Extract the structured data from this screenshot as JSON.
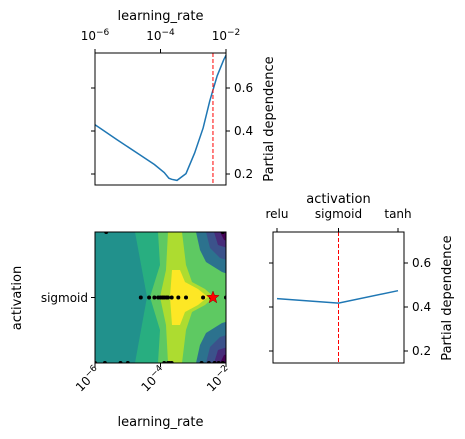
{
  "chart_data": [
    {
      "type": "line",
      "panel": "learning_rate",
      "xlabel": "learning_rate",
      "ylabel": "Partial dependence",
      "x_scale": "log",
      "xlim": [
        1e-06,
        0.01
      ],
      "x_ticks": [
        "10^-6",
        "10^-4",
        "10^-2"
      ],
      "ylim": [
        0.15,
        0.73
      ],
      "y_ticks": [
        "0.2",
        "0.4",
        "0.6"
      ],
      "x": [
        1e-06,
        4.6e-06,
        2.2e-05,
        6.5e-05,
        0.00013,
        0.00018,
        0.00022,
        0.00032,
        0.0006,
        0.0011,
        0.002,
        0.0032,
        0.0054,
        0.0085,
        0.01
      ],
      "y": [
        0.415,
        0.35,
        0.285,
        0.24,
        0.205,
        0.18,
        0.175,
        0.17,
        0.2,
        0.29,
        0.4,
        0.52,
        0.63,
        0.7,
        0.72
      ],
      "line_color": "#1f77b4",
      "marker_x": 0.004,
      "marker_color": "#ff0000"
    },
    {
      "type": "line",
      "panel": "activation",
      "xlabel": "activation",
      "ylabel": "Partial dependence",
      "categories": [
        "relu",
        "sigmoid",
        "tanh"
      ],
      "values": [
        0.435,
        0.415,
        0.47
      ],
      "ylim": [
        0.15,
        0.73
      ],
      "y_ticks": [
        "0.2",
        "0.4",
        "0.6"
      ],
      "line_color": "#1f77b4",
      "marker_category": "sigmoid",
      "marker_color": "#ff0000"
    },
    {
      "type": "heatmap",
      "panel": "learning_rate-activation",
      "xlabel": "learning_rate",
      "ylabel": "activation",
      "x_scale": "log",
      "xlim": [
        1e-06,
        0.01
      ],
      "x_ticks": [
        "10^-6",
        "10^-4",
        "10^-2"
      ],
      "y_ticks": [
        "sigmoid"
      ],
      "colormap": [
        "#440154",
        "#472c7a",
        "#3b528b",
        "#2c728e",
        "#21918c",
        "#28ae80",
        "#5ec962",
        "#addc30",
        "#fde725"
      ],
      "samples_sigmoid": [
        2.5e-05,
        4.5e-05,
        6.5e-05,
        8.5e-05,
        0.0001,
        0.000115,
        0.00013,
        0.00015,
        0.00017,
        0.00022,
        0.00035,
        0.0006,
        0.002,
        0.0035,
        0.01
      ],
      "samples_bottom": [
        1e-06,
        2e-06,
        6e-06,
        1e-05,
        0.00013,
        0.00017,
        0.00019,
        0.00022,
        0.0018,
        0.003,
        0.0045,
        0.006,
        0.008
      ],
      "samples_top": [
        2.2e-06,
        0.008
      ],
      "best_point": {
        "x": 0.004,
        "category": "sigmoid"
      },
      "best_color": "#ff0000"
    }
  ]
}
